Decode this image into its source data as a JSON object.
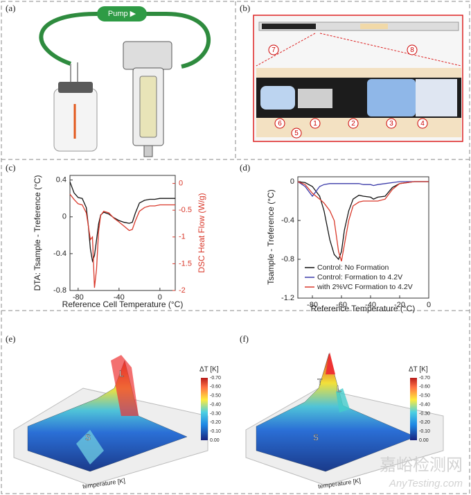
{
  "panel_labels": [
    "(a)",
    "(b)",
    "(c)",
    "(d)",
    "(e)",
    "(f)"
  ],
  "diagram_a": {
    "pump_label": "Pump ▶"
  },
  "image_b": {
    "callouts": [
      "7",
      "8",
      "6",
      "5",
      "1",
      "2",
      "3",
      "4"
    ]
  },
  "chart_data": [
    {
      "type": "line",
      "x_label": "Reference Cell Temperature (°C)",
      "y_label": "DTA: Tsample - Treference (°C)",
      "y2_label": "DSC Heat Flow (W/g)",
      "x": [
        -88,
        -84,
        -80,
        -76,
        -72,
        -70,
        -68,
        -66,
        -64,
        -62,
        -60,
        -58,
        -55,
        -50,
        -45,
        -40,
        -35,
        -30,
        -27,
        -24,
        -20,
        -15,
        -10,
        -5,
        0,
        5,
        10,
        15
      ],
      "series": [
        {
          "name": "DTA",
          "color": "#111111",
          "values": [
            0.38,
            0.26,
            0.21,
            0.2,
            0.1,
            -0.1,
            -0.35,
            -0.48,
            -0.42,
            -0.25,
            -0.08,
            0.02,
            0.05,
            0.03,
            -0.01,
            -0.04,
            -0.06,
            -0.07,
            -0.06,
            0.04,
            0.15,
            0.18,
            0.19,
            0.19,
            0.2,
            0.2,
            0.2,
            0.2
          ]
        },
        {
          "name": "DSC",
          "color": "#d9382a",
          "axis": "y2",
          "values": [
            -0.2,
            -0.3,
            -0.38,
            -0.4,
            -0.55,
            -0.8,
            -1.05,
            -1.0,
            -1.95,
            -1.6,
            -0.9,
            -0.6,
            -0.52,
            -0.55,
            -0.65,
            -0.72,
            -0.8,
            -0.88,
            -0.86,
            -0.7,
            -0.52,
            -0.45,
            -0.42,
            -0.42,
            -0.4,
            -0.4,
            -0.4,
            -0.4
          ]
        }
      ],
      "xlim": [
        -88,
        15
      ],
      "xticks": [
        -80,
        -40,
        0
      ],
      "ylim": [
        -0.8,
        0.45
      ],
      "yticks": [
        0.4,
        0,
        -0.4,
        -0.8
      ],
      "y2lim": [
        -2,
        0.15
      ],
      "y2ticks": [
        0,
        -0.5,
        -1,
        -1.5,
        -2
      ],
      "y2_color": "#d9382a",
      "legend": false
    },
    {
      "type": "line",
      "x_label": "Reference Temperature (°C)",
      "y_label": "Tsample - Treference (°C)",
      "x": [
        -90,
        -85,
        -80,
        -75,
        -72,
        -68,
        -65,
        -62,
        -60,
        -58,
        -55,
        -52,
        -48,
        -45,
        -40,
        -38,
        -35,
        -30,
        -25,
        -20,
        -10,
        0
      ],
      "series": [
        {
          "name": "Control: No Formation",
          "color": "#111111",
          "values": [
            0,
            -0.01,
            -0.05,
            -0.15,
            -0.3,
            -0.6,
            -0.75,
            -0.8,
            -0.72,
            -0.5,
            -0.3,
            -0.18,
            -0.14,
            -0.15,
            -0.16,
            -0.18,
            -0.16,
            -0.15,
            -0.06,
            -0.02,
            0,
            0
          ]
        },
        {
          "name": "Control: Formation to 4.2V",
          "color": "#3a3aa8",
          "values": [
            0,
            -0.05,
            -0.15,
            -0.05,
            -0.03,
            -0.02,
            -0.02,
            -0.02,
            -0.02,
            -0.02,
            -0.02,
            -0.02,
            -0.02,
            -0.03,
            -0.03,
            -0.04,
            -0.03,
            -0.02,
            -0.01,
            0,
            0,
            0
          ]
        },
        {
          "name": "with 2%VC Formation to 4.2V",
          "color": "#d9382a",
          "values": [
            0,
            -0.03,
            -0.12,
            -0.18,
            -0.22,
            -0.3,
            -0.4,
            -0.72,
            -0.82,
            -0.65,
            -0.4,
            -0.25,
            -0.21,
            -0.2,
            -0.2,
            -0.2,
            -0.2,
            -0.18,
            -0.08,
            -0.02,
            0,
            0
          ]
        }
      ],
      "xlim": [
        -90,
        0
      ],
      "xticks": [
        -80,
        -60,
        -40,
        -20,
        0
      ],
      "ylim": [
        -1.2,
        0.05
      ],
      "yticks": [
        0,
        -0.4,
        -0.8,
        -1.2
      ],
      "legend": "lower left"
    }
  ],
  "surface_e": {
    "colorbar_title": "ΔT [K]",
    "colorbar_ticks": [
      "-0.70",
      "-0.60",
      "-0.50",
      "-0.40",
      "-0.30",
      "-0.20",
      "-0.10",
      "0.00"
    ],
    "x_label": "temperature [K]",
    "peak_labels": [
      "L",
      "S"
    ]
  },
  "surface_f": {
    "colorbar_title": "ΔT [K]",
    "colorbar_ticks": [
      "-0.70",
      "-0.60",
      "-0.50",
      "-0.40",
      "-0.30",
      "-0.20",
      "-0.10",
      "0.00"
    ],
    "x_label": "temperature [K]",
    "peak_labels": [
      "T",
      "L",
      "S"
    ]
  },
  "watermark": {
    "title": "嘉峪检测网",
    "url": "AnyTesting.com"
  }
}
